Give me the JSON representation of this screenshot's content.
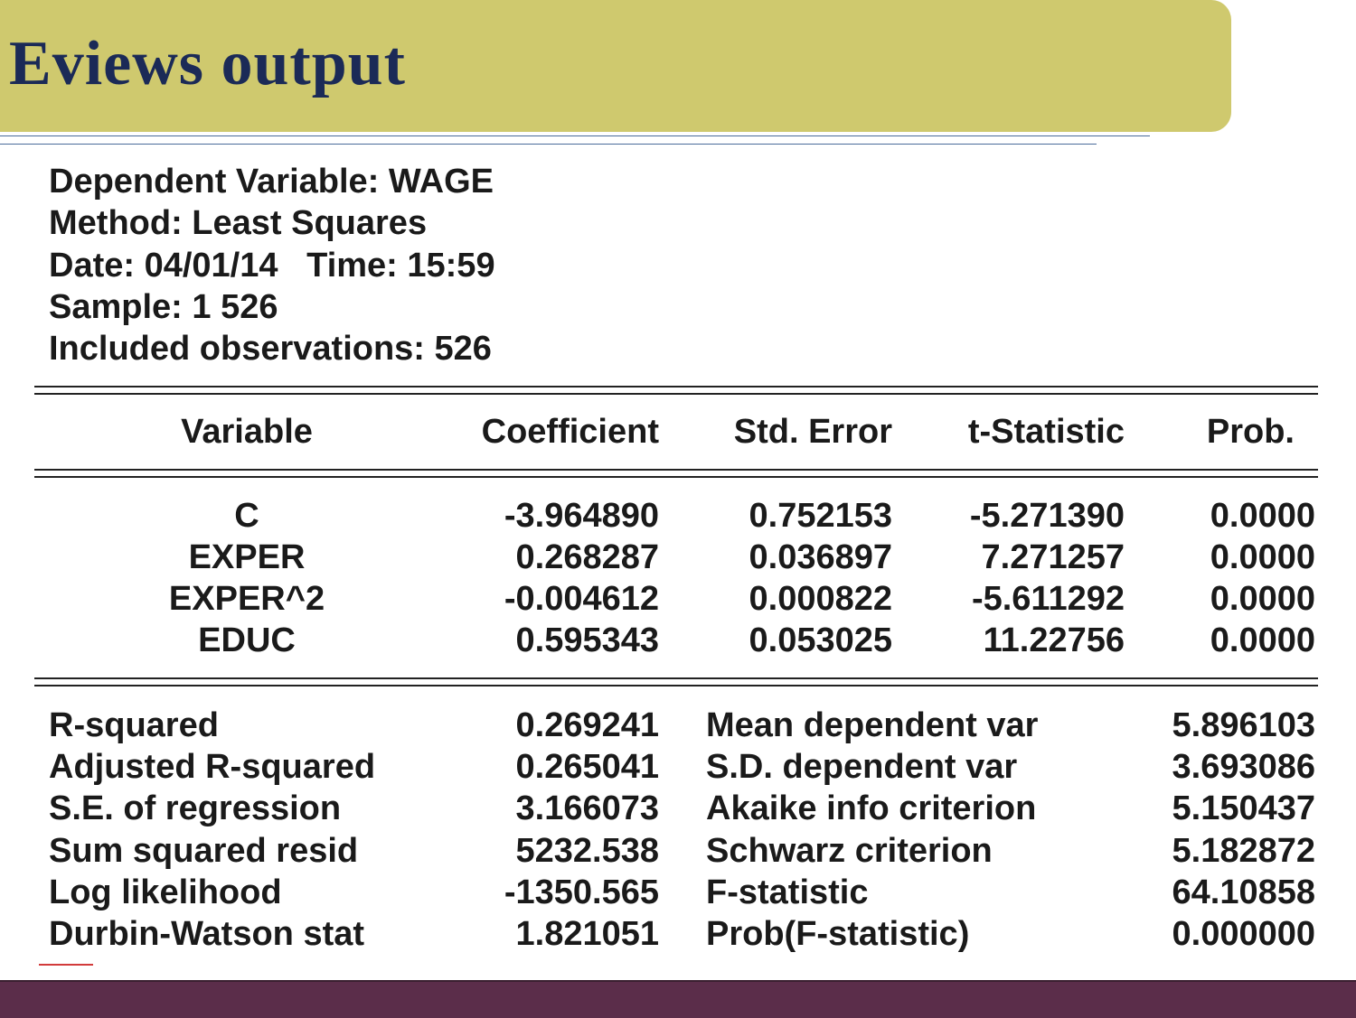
{
  "slide": {
    "title": "Eviews output"
  },
  "header": {
    "lines": [
      "Dependent Variable: WAGE",
      "Method: Least Squares",
      "Date: 04/01/14   Time: 15:59",
      "Sample: 1 526",
      "Included observations: 526"
    ]
  },
  "coef_table": {
    "columns": [
      "Variable",
      "Coefficient",
      "Std. Error",
      "t-Statistic",
      "Prob."
    ],
    "rows": [
      [
        "C",
        "-3.964890",
        "0.752153",
        "-5.271390",
        "0.0000"
      ],
      [
        "EXPER",
        "0.268287",
        "0.036897",
        "7.271257",
        "0.0000"
      ],
      [
        "EXPER^2",
        "-0.004612",
        "0.000822",
        "-5.611292",
        "0.0000"
      ],
      [
        "EDUC",
        "0.595343",
        "0.053025",
        "11.22756",
        "0.0000"
      ]
    ]
  },
  "stats": {
    "left": [
      [
        "R-squared",
        "0.269241"
      ],
      [
        "Adjusted R-squared",
        "0.265041"
      ],
      [
        "S.E. of regression",
        "3.166073"
      ],
      [
        "Sum squared resid",
        "5232.538"
      ],
      [
        "Log likelihood",
        "-1350.565"
      ],
      [
        "Durbin-Watson stat",
        "1.821051"
      ]
    ],
    "right": [
      [
        "Mean dependent var",
        "5.896103"
      ],
      [
        "S.D. dependent var",
        "3.693086"
      ],
      [
        "Akaike info criterion",
        "5.150437"
      ],
      [
        "Schwarz criterion",
        "5.182872"
      ],
      [
        "F-statistic",
        "64.10858"
      ],
      [
        "Prob(F-statistic)",
        "0.000000"
      ]
    ]
  },
  "colors": {
    "title_bar": "#cfc96e",
    "title_text": "#1b2a57",
    "footer": "#5b2d4a"
  }
}
